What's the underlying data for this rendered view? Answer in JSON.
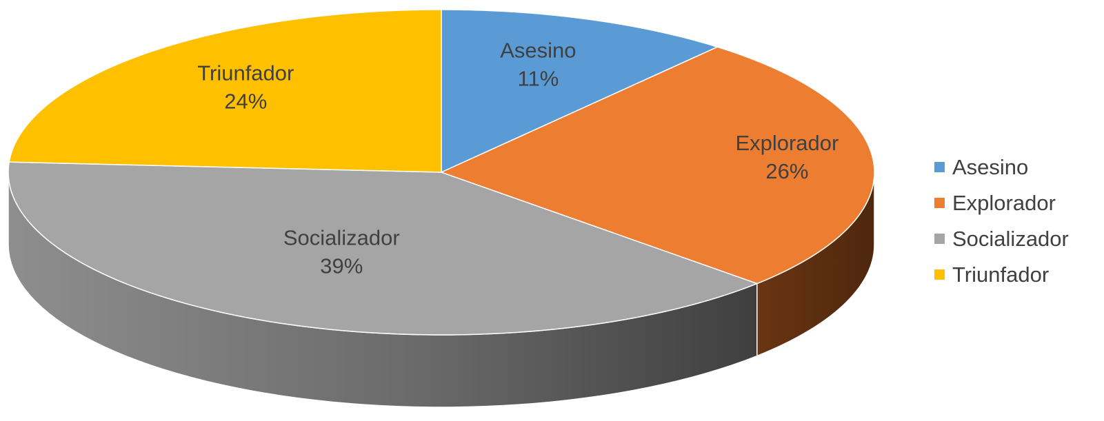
{
  "chart_data": {
    "type": "pie",
    "title": "",
    "categories": [
      "Asesino",
      "Explorador",
      "Socializador",
      "Triunfador"
    ],
    "values": [
      11,
      26,
      39,
      24
    ],
    "value_labels": [
      "11%",
      "26%",
      "39%",
      "24%"
    ],
    "colors": [
      "#5B9BD5",
      "#ED7D31",
      "#A5A5A5",
      "#FFC000"
    ],
    "style": "3d",
    "legend": {
      "position": "right",
      "entries": [
        "Asesino",
        "Explorador",
        "Socializador",
        "Triunfador"
      ]
    }
  }
}
